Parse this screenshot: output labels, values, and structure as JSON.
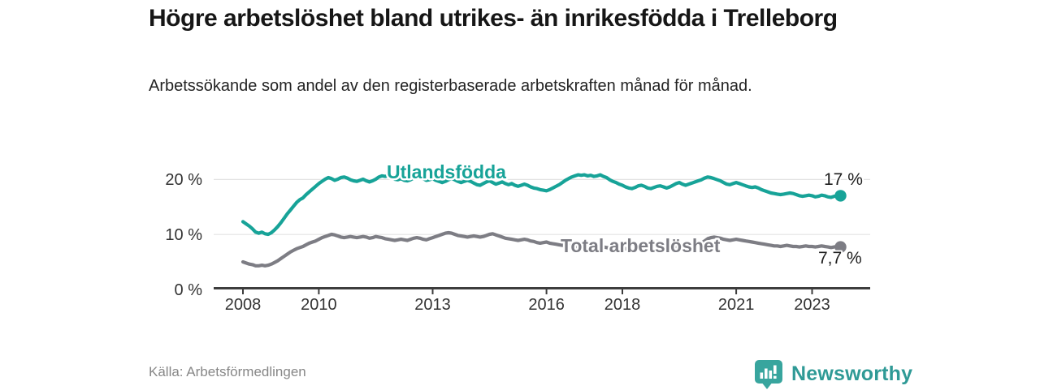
{
  "header": {
    "title": "Högre arbetslöshet bland utrikes- än inrikesfödda i Trelleborg",
    "subtitle": "Arbetssökande som andel av den registerbaserade arbetskraften månad för månad."
  },
  "footer": {
    "source": "Källa: Arbetsförmedlingen",
    "brand_name": "Newsworthy",
    "brand_icon": "bar-chart-speech-bubble-icon",
    "brand_color": "#38a59e"
  },
  "chart_data": {
    "type": "line",
    "unit": "%",
    "freq": "monthly",
    "x_start": "2008-01",
    "x_end": "2023-10",
    "x_tick_years": [
      2008,
      2010,
      2013,
      2016,
      2018,
      2021,
      2023
    ],
    "x_tick_labels": [
      "2008",
      "2010",
      "2013",
      "2016",
      "2018",
      "2021",
      "2023"
    ],
    "y_ticks": [
      0,
      10,
      20
    ],
    "y_tick_labels": [
      "0 %",
      "10 %",
      "20 %"
    ],
    "ylim": [
      0,
      23
    ],
    "grid": "horizontal-only",
    "legend_position": "inline-labels",
    "series": [
      {
        "name": "Utlandsfödda",
        "color": "#17a398",
        "end_label": "17 %",
        "end_value": 17.0,
        "values": [
          12.3,
          11.9,
          11.5,
          11.0,
          10.4,
          10.2,
          10.4,
          10.1,
          10.0,
          10.3,
          10.8,
          11.4,
          12.1,
          12.9,
          13.7,
          14.4,
          15.1,
          15.8,
          16.3,
          16.6,
          17.2,
          17.7,
          18.2,
          18.7,
          19.2,
          19.6,
          20.0,
          20.3,
          20.1,
          19.8,
          20.0,
          20.3,
          20.4,
          20.2,
          19.9,
          19.7,
          19.6,
          19.8,
          20.0,
          19.7,
          19.5,
          19.7,
          20.0,
          20.4,
          20.6,
          20.5,
          20.6,
          20.3,
          20.0,
          19.9,
          20.1,
          19.8,
          19.7,
          19.9,
          20.2,
          20.5,
          20.3,
          20.1,
          19.8,
          19.9,
          20.1,
          19.8,
          19.6,
          19.4,
          19.6,
          19.9,
          20.1,
          19.9,
          19.6,
          19.4,
          19.6,
          19.8,
          19.6,
          19.3,
          19.0,
          18.9,
          19.2,
          19.5,
          19.7,
          19.4,
          19.1,
          19.3,
          19.5,
          19.2,
          19.0,
          19.2,
          18.9,
          18.7,
          18.9,
          19.1,
          18.9,
          18.6,
          18.4,
          18.3,
          18.1,
          18.0,
          17.9,
          18.1,
          18.4,
          18.7,
          19.0,
          19.4,
          19.8,
          20.1,
          20.4,
          20.6,
          20.8,
          20.7,
          20.8,
          20.6,
          20.7,
          20.5,
          20.6,
          20.8,
          20.5,
          20.3,
          19.9,
          19.6,
          19.4,
          19.1,
          18.9,
          18.6,
          18.4,
          18.3,
          18.5,
          18.8,
          18.9,
          18.7,
          18.4,
          18.3,
          18.5,
          18.7,
          18.8,
          18.6,
          18.4,
          18.6,
          18.9,
          19.2,
          19.4,
          19.1,
          18.9,
          19.1,
          19.3,
          19.5,
          19.7,
          19.9,
          20.2,
          20.4,
          20.3,
          20.1,
          19.9,
          19.7,
          19.4,
          19.1,
          19.0,
          19.2,
          19.4,
          19.2,
          19.0,
          18.8,
          18.6,
          18.5,
          18.6,
          18.4,
          18.1,
          17.9,
          17.7,
          17.5,
          17.4,
          17.3,
          17.2,
          17.3,
          17.4,
          17.5,
          17.4,
          17.2,
          17.0,
          16.9,
          17.0,
          17.1,
          17.0,
          16.8,
          16.9,
          17.1,
          17.0,
          16.8,
          16.7,
          16.9,
          17.0,
          17.0
        ]
      },
      {
        "name": "Total arbetslöshet",
        "color": "#7d7d84",
        "end_label": "7,7 %",
        "end_value": 7.7,
        "values": [
          5.0,
          4.8,
          4.6,
          4.5,
          4.3,
          4.3,
          4.4,
          4.3,
          4.4,
          4.6,
          4.9,
          5.2,
          5.6,
          6.0,
          6.4,
          6.8,
          7.1,
          7.4,
          7.6,
          7.8,
          8.1,
          8.4,
          8.6,
          8.8,
          9.1,
          9.4,
          9.6,
          9.8,
          10.0,
          9.9,
          9.7,
          9.5,
          9.4,
          9.5,
          9.6,
          9.5,
          9.4,
          9.5,
          9.6,
          9.5,
          9.3,
          9.4,
          9.6,
          9.5,
          9.4,
          9.2,
          9.1,
          9.0,
          8.9,
          9.0,
          9.1,
          9.0,
          8.9,
          9.1,
          9.3,
          9.4,
          9.3,
          9.1,
          9.0,
          9.2,
          9.4,
          9.6,
          9.8,
          10.0,
          10.2,
          10.3,
          10.2,
          10.0,
          9.8,
          9.7,
          9.6,
          9.5,
          9.6,
          9.7,
          9.6,
          9.5,
          9.6,
          9.8,
          10.0,
          10.1,
          9.9,
          9.7,
          9.5,
          9.3,
          9.2,
          9.1,
          9.0,
          8.9,
          9.0,
          9.1,
          9.0,
          8.8,
          8.7,
          8.5,
          8.4,
          8.5,
          8.6,
          8.4,
          8.3,
          8.2,
          8.1,
          8.0,
          8.1,
          8.0,
          7.9,
          7.8,
          7.7,
          7.6,
          7.7,
          7.6,
          7.5,
          7.6,
          7.7,
          7.8,
          7.7,
          7.6,
          7.5,
          7.4,
          7.3,
          7.4,
          7.5,
          7.4,
          7.3,
          7.2,
          7.3,
          7.4,
          7.5,
          7.4,
          7.3,
          7.2,
          7.3,
          7.4,
          7.5,
          7.6,
          7.5,
          7.6,
          7.7,
          7.8,
          7.9,
          7.8,
          7.7,
          7.8,
          7.9,
          8.0,
          8.2,
          8.4,
          8.8,
          9.2,
          9.4,
          9.5,
          9.4,
          9.3,
          9.1,
          9.0,
          8.9,
          9.0,
          9.1,
          9.0,
          8.9,
          8.8,
          8.7,
          8.6,
          8.5,
          8.4,
          8.3,
          8.2,
          8.1,
          8.0,
          7.9,
          7.9,
          7.8,
          7.9,
          8.0,
          7.9,
          7.8,
          7.8,
          7.7,
          7.8,
          7.9,
          7.8,
          7.8,
          7.7,
          7.8,
          7.9,
          7.8,
          7.7,
          7.6,
          7.7,
          7.8,
          7.7
        ]
      }
    ]
  }
}
